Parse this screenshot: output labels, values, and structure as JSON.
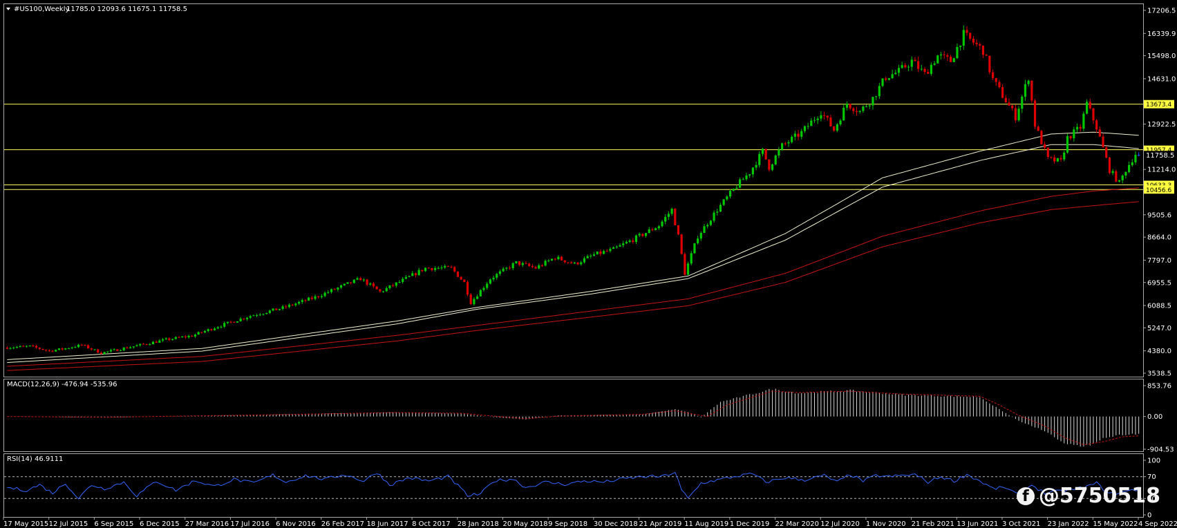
{
  "header": {
    "symbol": "#US100,Weekly",
    "ohlc": "11785.0 12093.6 11675.1 11758.5",
    "macd_label": "MACD(12,26,9) -476.94 -535.96",
    "rsi_label": "RSI(14) 46.9111"
  },
  "watermark": {
    "icon": "facebook-icon",
    "text": "@5750518"
  },
  "colors": {
    "bull": "#00c800",
    "bear": "#dc0000",
    "current": "#1e50ff",
    "level": "#ffff60",
    "ma_light": "#f0f0d0",
    "ma_red": "#c81414",
    "rsi": "#3264ff",
    "tag": "#ffff40"
  },
  "chart_data": [
    {
      "type": "candlestick",
      "title": "#US100,Weekly",
      "ylim": [
        3538.5,
        17206.5
      ],
      "yticks": [
        "17206.5",
        "16339.9",
        "15498.0",
        "14631.0",
        "12922.5",
        "11214.0",
        "9505.6",
        "8664.0",
        "7797.0",
        "6955.5",
        "6088.5",
        "5247.0",
        "4380.0",
        "3538.5"
      ],
      "price_tags": [
        "13673.4",
        "11957.4",
        "11758.5",
        "10633.3",
        "10456.6"
      ],
      "current_price": 11758.5,
      "horizontal_levels": [
        13673.4,
        11957.4,
        10633.3,
        10456.6
      ],
      "xticks": [
        "17 May 2015",
        "12 Jul 2015",
        "6 Sep 2015",
        "6 Dec 2015",
        "27 Mar 2016",
        "17 Jul 2016",
        "6 Nov 2016",
        "26 Feb 2017",
        "18 Jun 2017",
        "8 Oct 2017",
        "28 Jan 2018",
        "20 May 2018",
        "9 Sep 2018",
        "30 Dec 2018",
        "21 Apr 2019",
        "11 Aug 2019",
        "1 Dec 2019",
        "22 Mar 2020",
        "12 Jul 2020",
        "1 Nov 2020",
        "21 Feb 2021",
        "13 Jun 2021",
        "3 Oct 2021",
        "23 Jan 2022",
        "15 May 2022",
        "4 Sep 2022"
      ],
      "price_path": [
        [
          0,
          4500
        ],
        [
          8,
          4550
        ],
        [
          14,
          4380
        ],
        [
          18,
          4450
        ],
        [
          24,
          4600
        ],
        [
          30,
          4300
        ],
        [
          36,
          4450
        ],
        [
          42,
          4600
        ],
        [
          50,
          4800
        ],
        [
          58,
          4950
        ],
        [
          66,
          5300
        ],
        [
          76,
          5700
        ],
        [
          86,
          6000
        ],
        [
          96,
          6400
        ],
        [
          104,
          6800
        ],
        [
          110,
          7100
        ],
        [
          116,
          6600
        ],
        [
          124,
          7100
        ],
        [
          130,
          7500
        ],
        [
          138,
          7500
        ],
        [
          142,
          6950
        ],
        [
          144,
          6200
        ],
        [
          150,
          7100
        ],
        [
          158,
          7700
        ],
        [
          164,
          7500
        ],
        [
          170,
          7900
        ],
        [
          176,
          7650
        ],
        [
          182,
          8000
        ],
        [
          188,
          8200
        ],
        [
          196,
          8700
        ],
        [
          202,
          9100
        ],
        [
          206,
          9700
        ],
        [
          208,
          8700
        ],
        [
          210,
          7300
        ],
        [
          214,
          8700
        ],
        [
          220,
          9700
        ],
        [
          226,
          10600
        ],
        [
          230,
          11100
        ],
        [
          234,
          11900
        ],
        [
          236,
          11300
        ],
        [
          240,
          12100
        ],
        [
          246,
          12600
        ],
        [
          252,
          13400
        ],
        [
          256,
          12700
        ],
        [
          260,
          13700
        ],
        [
          264,
          13400
        ],
        [
          268,
          13900
        ],
        [
          272,
          14700
        ],
        [
          276,
          14900
        ],
        [
          280,
          15300
        ],
        [
          284,
          14800
        ],
        [
          288,
          15500
        ],
        [
          292,
          15300
        ],
        [
          296,
          16300
        ],
        [
          298,
          16100
        ],
        [
          302,
          15700
        ],
        [
          305,
          14600
        ],
        [
          308,
          14000
        ],
        [
          312,
          13200
        ],
        [
          316,
          14700
        ],
        [
          318,
          12900
        ],
        [
          322,
          11600
        ],
        [
          326,
          11500
        ],
        [
          328,
          12400
        ],
        [
          332,
          12800
        ],
        [
          334,
          13700
        ],
        [
          337,
          12800
        ],
        [
          341,
          11200
        ],
        [
          344,
          10700
        ],
        [
          346,
          11200
        ],
        [
          349,
          11800
        ]
      ],
      "moving_averages": [
        {
          "color": "light",
          "values": [
            [
              0,
              4050
            ],
            [
              60,
              4470
            ],
            [
              120,
              5500
            ],
            [
              145,
              6020
            ],
            [
              180,
              6620
            ],
            [
              210,
              7200
            ],
            [
              240,
              8800
            ],
            [
              270,
              10900
            ],
            [
              300,
              11900
            ],
            [
              322,
              12550
            ],
            [
              335,
              12620
            ],
            [
              349,
              12500
            ]
          ]
        },
        {
          "color": "light",
          "values": [
            [
              0,
              3940
            ],
            [
              60,
              4370
            ],
            [
              120,
              5390
            ],
            [
              145,
              5950
            ],
            [
              180,
              6520
            ],
            [
              210,
              7100
            ],
            [
              240,
              8550
            ],
            [
              270,
              10550
            ],
            [
              300,
              11550
            ],
            [
              322,
              12150
            ],
            [
              335,
              12150
            ],
            [
              349,
              12000
            ]
          ]
        },
        {
          "color": "red",
          "values": [
            [
              0,
              3800
            ],
            [
              60,
              4170
            ],
            [
              120,
              4960
            ],
            [
              145,
              5340
            ],
            [
              180,
              5880
            ],
            [
              210,
              6340
            ],
            [
              240,
              7300
            ],
            [
              270,
              8700
            ],
            [
              300,
              9650
            ],
            [
              322,
              10200
            ],
            [
              335,
              10400
            ],
            [
              349,
              10520
            ]
          ]
        },
        {
          "color": "red",
          "values": [
            [
              0,
              3640
            ],
            [
              60,
              3980
            ],
            [
              120,
              4750
            ],
            [
              145,
              5150
            ],
            [
              180,
              5650
            ],
            [
              210,
              6080
            ],
            [
              240,
              6960
            ],
            [
              270,
              8300
            ],
            [
              300,
              9200
            ],
            [
              322,
              9700
            ],
            [
              335,
              9850
            ],
            [
              349,
              10000
            ]
          ]
        }
      ]
    },
    {
      "type": "bar",
      "title": "MACD(12,26,9) -476.94 -535.96",
      "ylim": [
        -904.53,
        853.76
      ],
      "yticks": [
        "853.76",
        "0.00",
        "-904.53"
      ],
      "macd_path": [
        [
          0,
          0
        ],
        [
          30,
          -30
        ],
        [
          60,
          20
        ],
        [
          90,
          70
        ],
        [
          120,
          120
        ],
        [
          140,
          80
        ],
        [
          150,
          -20
        ],
        [
          160,
          -80
        ],
        [
          170,
          30
        ],
        [
          196,
          60
        ],
        [
          206,
          200
        ],
        [
          210,
          120
        ],
        [
          214,
          -20
        ],
        [
          220,
          400
        ],
        [
          236,
          760
        ],
        [
          244,
          650
        ],
        [
          260,
          720
        ],
        [
          276,
          600
        ],
        [
          292,
          560
        ],
        [
          300,
          540
        ],
        [
          306,
          200
        ],
        [
          312,
          -120
        ],
        [
          320,
          -400
        ],
        [
          326,
          -720
        ],
        [
          332,
          -860
        ],
        [
          338,
          -600
        ],
        [
          344,
          -500
        ],
        [
          349,
          -480
        ]
      ],
      "signal_path": [
        [
          0,
          0
        ],
        [
          30,
          -20
        ],
        [
          60,
          20
        ],
        [
          90,
          60
        ],
        [
          120,
          110
        ],
        [
          140,
          90
        ],
        [
          150,
          10
        ],
        [
          160,
          -60
        ],
        [
          170,
          10
        ],
        [
          196,
          60
        ],
        [
          206,
          160
        ],
        [
          212,
          60
        ],
        [
          216,
          0
        ],
        [
          222,
          320
        ],
        [
          236,
          700
        ],
        [
          244,
          660
        ],
        [
          260,
          700
        ],
        [
          276,
          620
        ],
        [
          292,
          580
        ],
        [
          300,
          560
        ],
        [
          306,
          320
        ],
        [
          312,
          30
        ],
        [
          320,
          -260
        ],
        [
          326,
          -580
        ],
        [
          332,
          -780
        ],
        [
          338,
          -700
        ],
        [
          344,
          -560
        ],
        [
          349,
          -536
        ]
      ]
    },
    {
      "type": "line",
      "title": "RSI(14) 46.9111",
      "ylim": [
        0,
        100
      ],
      "yticks": [
        "100",
        "70",
        "30",
        "0"
      ],
      "levels": [
        70,
        30
      ],
      "rsi_path": [
        [
          0,
          50
        ],
        [
          6,
          45
        ],
        [
          10,
          55
        ],
        [
          14,
          40
        ],
        [
          18,
          58
        ],
        [
          22,
          30
        ],
        [
          26,
          55
        ],
        [
          30,
          48
        ],
        [
          36,
          60
        ],
        [
          40,
          35
        ],
        [
          46,
          62
        ],
        [
          52,
          45
        ],
        [
          58,
          63
        ],
        [
          64,
          52
        ],
        [
          70,
          65
        ],
        [
          76,
          58
        ],
        [
          82,
          73
        ],
        [
          86,
          60
        ],
        [
          92,
          72
        ],
        [
          98,
          65
        ],
        [
          104,
          74
        ],
        [
          110,
          62
        ],
        [
          114,
          78
        ],
        [
          118,
          55
        ],
        [
          124,
          68
        ],
        [
          130,
          62
        ],
        [
          136,
          70
        ],
        [
          140,
          48
        ],
        [
          142,
          35
        ],
        [
          146,
          38
        ],
        [
          150,
          62
        ],
        [
          156,
          66
        ],
        [
          160,
          50
        ],
        [
          166,
          60
        ],
        [
          172,
          56
        ],
        [
          178,
          62
        ],
        [
          184,
          60
        ],
        [
          190,
          66
        ],
        [
          196,
          70
        ],
        [
          202,
          70
        ],
        [
          206,
          78
        ],
        [
          208,
          45
        ],
        [
          210,
          30
        ],
        [
          214,
          58
        ],
        [
          220,
          65
        ],
        [
          226,
          72
        ],
        [
          230,
          75
        ],
        [
          234,
          60
        ],
        [
          240,
          68
        ],
        [
          246,
          64
        ],
        [
          252,
          72
        ],
        [
          256,
          60
        ],
        [
          260,
          74
        ],
        [
          264,
          62
        ],
        [
          268,
          72
        ],
        [
          272,
          70
        ],
        [
          276,
          72
        ],
        [
          280,
          74
        ],
        [
          284,
          60
        ],
        [
          288,
          70
        ],
        [
          292,
          62
        ],
        [
          296,
          74
        ],
        [
          300,
          62
        ],
        [
          304,
          48
        ],
        [
          308,
          50
        ],
        [
          312,
          36
        ],
        [
          316,
          55
        ],
        [
          320,
          40
        ],
        [
          326,
          44
        ],
        [
          332,
          50
        ],
        [
          336,
          58
        ],
        [
          340,
          38
        ],
        [
          344,
          42
        ],
        [
          349,
          46.9
        ]
      ]
    }
  ]
}
